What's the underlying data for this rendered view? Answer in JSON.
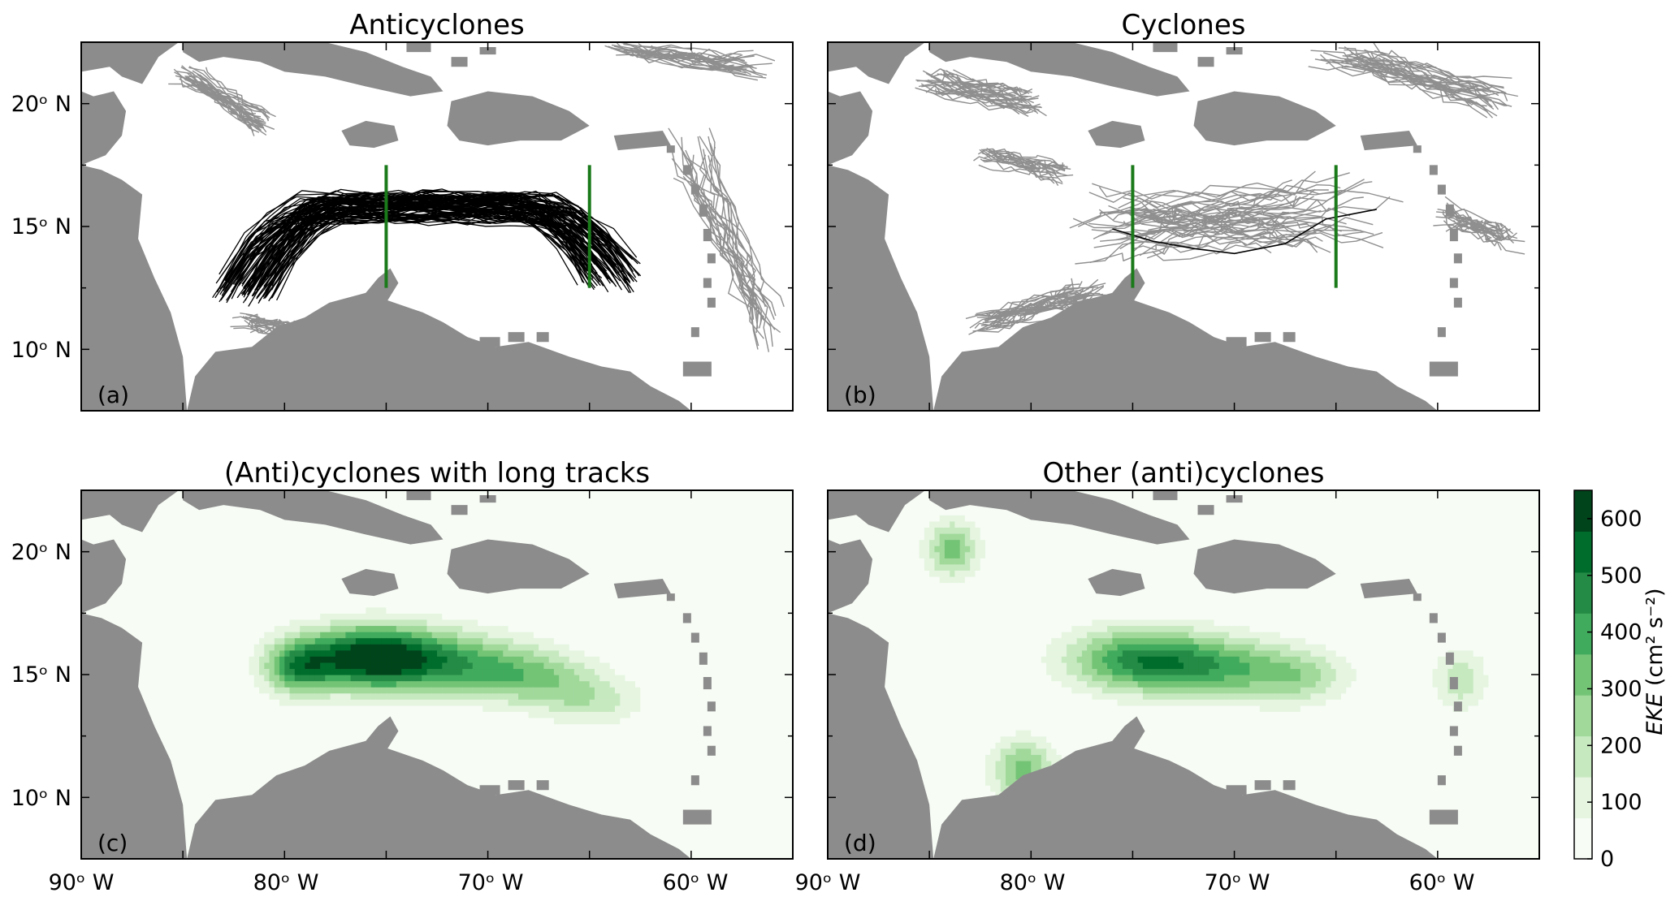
{
  "figure": {
    "colors": {
      "land": "#8c8c8c",
      "ocean_tracks_bg": "#ffffff",
      "track_grey": "#8f8f8f",
      "track_black": "#000000",
      "section_green": "#1a7a1a",
      "eke_scale": [
        "#f7fcf5",
        "#e5f5e0",
        "#c7e9c0",
        "#a1d99b",
        "#74c476",
        "#41ab5d",
        "#238b45",
        "#006d2c",
        "#00441b"
      ]
    },
    "panels": [
      {
        "key": "a",
        "title": "Anticyclones",
        "tag": "(a)",
        "type": "tracks"
      },
      {
        "key": "b",
        "title": "Cyclones",
        "tag": "(b)",
        "type": "tracks"
      },
      {
        "key": "c",
        "title": "(Anti)cyclones with long tracks",
        "tag": "(c)",
        "type": "eke"
      },
      {
        "key": "d",
        "title": "Other (anti)cyclones",
        "tag": "(d)",
        "type": "eke"
      }
    ],
    "lon_range": [
      -90,
      -55
    ],
    "lat_range": [
      7.5,
      22.5
    ],
    "lat_ticks": [
      {
        "lat": 20,
        "label": "20ᵒ N"
      },
      {
        "lat": 15,
        "label": "15ᵒ N"
      },
      {
        "lat": 10,
        "label": "10ᵒ N"
      }
    ],
    "lon_ticks": [
      {
        "lon": -90,
        "label": "90ᵒ W"
      },
      {
        "lon": -80,
        "label": "80ᵒ W"
      },
      {
        "lon": -70,
        "label": "70ᵒ W"
      },
      {
        "lon": -60,
        "label": "60ᵒ W"
      }
    ],
    "sections": [
      {
        "lon": -75,
        "lat_from": 12.5,
        "lat_to": 17.5
      },
      {
        "lon": -65,
        "lat_from": 12.5,
        "lat_to": 17.5
      }
    ],
    "colorbar": {
      "label_italic": "EKE",
      "label_rest": " (cm² s⁻²)",
      "min": 0,
      "max": 650,
      "ticks": [
        {
          "value": 0,
          "label": "0"
        },
        {
          "value": 100,
          "label": "100"
        },
        {
          "value": 200,
          "label": "200"
        },
        {
          "value": 300,
          "label": "300"
        },
        {
          "value": 400,
          "label": "400"
        },
        {
          "value": 500,
          "label": "500"
        },
        {
          "value": 600,
          "label": "600"
        }
      ]
    },
    "eke_fields": {
      "c": [
        {
          "lon": -76,
          "lat": 15.6,
          "slon": 2.2,
          "slat": 0.9,
          "amp": 620
        },
        {
          "lon": -72,
          "lat": 15.4,
          "slon": 2.5,
          "slat": 0.9,
          "amp": 340
        },
        {
          "lon": -68,
          "lat": 14.8,
          "slon": 2.2,
          "slat": 0.8,
          "amp": 260
        },
        {
          "lon": -65,
          "lat": 13.8,
          "slon": 1.8,
          "slat": 0.7,
          "amp": 170
        },
        {
          "lon": -79.5,
          "lat": 15.2,
          "slon": 1.2,
          "slat": 0.8,
          "amp": 380
        }
      ],
      "d": [
        {
          "lon": -84,
          "lat": 20.0,
          "slon": 0.9,
          "slat": 0.8,
          "amp": 320
        },
        {
          "lon": -75,
          "lat": 15.5,
          "slon": 2.4,
          "slat": 0.9,
          "amp": 420
        },
        {
          "lon": -71,
          "lat": 15.2,
          "slon": 2.4,
          "slat": 0.9,
          "amp": 320
        },
        {
          "lon": -67,
          "lat": 14.8,
          "slon": 1.8,
          "slat": 0.8,
          "amp": 220
        },
        {
          "lon": -80.5,
          "lat": 11.0,
          "slon": 1.1,
          "slat": 0.9,
          "amp": 320
        },
        {
          "lon": -59,
          "lat": 14.7,
          "slon": 0.9,
          "slat": 0.9,
          "amp": 200
        }
      ]
    }
  }
}
